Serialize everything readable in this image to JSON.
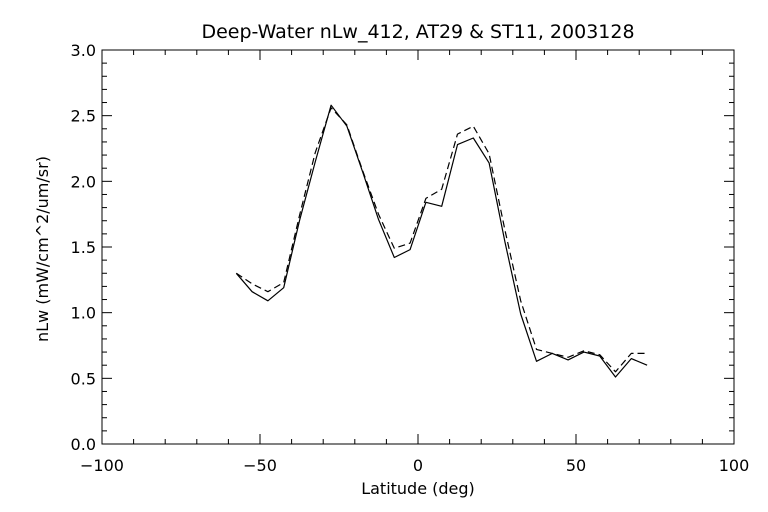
{
  "chart_data": {
    "type": "line",
    "title": "Deep-Water nLw_412, AT29 & ST11, 2003128",
    "xlabel": "Latitude (deg)",
    "ylabel": "nLw (mW/cm^2/um/sr)",
    "xlim": [
      -100,
      100
    ],
    "ylim": [
      0.0,
      3.0
    ],
    "x_ticks": [
      "−100",
      "−50",
      "0",
      "50",
      "100"
    ],
    "y_ticks": [
      "0.0",
      "0.5",
      "1.0",
      "1.5",
      "2.0",
      "2.5",
      "3.0"
    ],
    "grid": false,
    "legend": "none",
    "series": [
      {
        "style": "solid",
        "color": "#000000",
        "x": [
          -57.5,
          -52.5,
          -47.5,
          -42.5,
          -37.5,
          -32.5,
          -27.5,
          -22.5,
          -17.5,
          -12.5,
          -7.5,
          -2.5,
          2.5,
          7.5,
          12.5,
          17.5,
          22.5,
          27.5,
          32.5,
          37.5,
          42.5,
          47.5,
          52.5,
          57.5,
          62.5,
          67.5,
          72.5
        ],
        "y": [
          1.3,
          1.16,
          1.09,
          1.19,
          1.7,
          2.15,
          2.58,
          2.42,
          2.07,
          1.71,
          1.42,
          1.48,
          1.84,
          1.81,
          2.28,
          2.33,
          2.14,
          1.54,
          0.99,
          0.63,
          0.69,
          0.64,
          0.7,
          0.67,
          0.51,
          0.65,
          0.6
        ]
      },
      {
        "style": "dashed",
        "color": "#000000",
        "x": [
          -57.5,
          -52.5,
          -47.5,
          -42.5,
          -37.5,
          -32.5,
          -27.5,
          -22.5,
          -17.5,
          -12.5,
          -7.5,
          -2.5,
          2.5,
          7.5,
          12.5,
          17.5,
          22.5,
          27.5,
          32.5,
          37.5,
          42.5,
          47.5,
          52.5,
          57.5,
          62.5,
          67.5,
          72.5
        ],
        "y": [
          1.3,
          1.22,
          1.16,
          1.23,
          1.74,
          2.22,
          2.56,
          2.43,
          2.08,
          1.75,
          1.49,
          1.53,
          1.87,
          1.94,
          2.36,
          2.42,
          2.21,
          1.63,
          1.09,
          0.72,
          0.69,
          0.66,
          0.71,
          0.68,
          0.55,
          0.69,
          0.69
        ]
      }
    ]
  }
}
